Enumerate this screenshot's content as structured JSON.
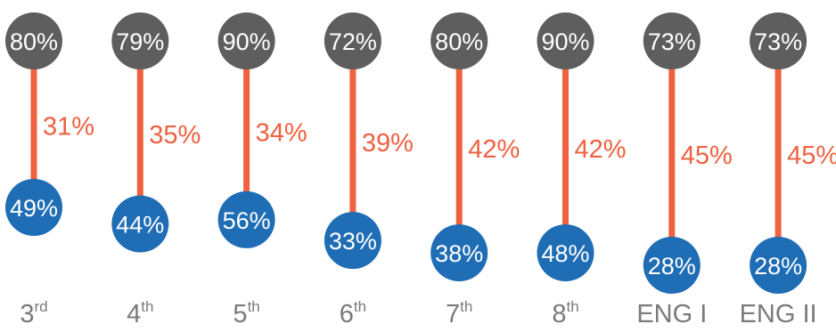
{
  "chart_data": {
    "type": "dumbbell",
    "colors": {
      "top": "#5e5e5e",
      "bottom": "#1f6db5",
      "connector": "#ef6140",
      "gap_label": "#ef6140",
      "category_label": "#7a7a7a",
      "value_text": "#ffffff"
    },
    "categories": [
      {
        "label": "3",
        "suffix": "rd"
      },
      {
        "label": "4",
        "suffix": "th"
      },
      {
        "label": "5",
        "suffix": "th"
      },
      {
        "label": "6",
        "suffix": "th"
      },
      {
        "label": "7",
        "suffix": "th"
      },
      {
        "label": "8",
        "suffix": "th"
      },
      {
        "label": "ENG I",
        "suffix": ""
      },
      {
        "label": "ENG II",
        "suffix": ""
      }
    ],
    "series": [
      {
        "values": [
          80,
          79,
          90,
          72,
          80,
          90,
          73,
          73
        ],
        "labels": [
          "80%",
          "79%",
          "90%",
          "72%",
          "80%",
          "90%",
          "73%",
          "73%"
        ]
      },
      {
        "values": [
          49,
          44,
          56,
          33,
          38,
          48,
          28,
          28
        ],
        "labels": [
          "49%",
          "44%",
          "56%",
          "33%",
          "38%",
          "48%",
          "28%",
          "28%"
        ]
      }
    ],
    "gaps": [
      31,
      35,
      34,
      39,
      42,
      42,
      45,
      45
    ],
    "gap_labels": [
      "31%",
      "35%",
      "34%",
      "39%",
      "42%",
      "42%",
      "45%",
      "45%"
    ]
  }
}
